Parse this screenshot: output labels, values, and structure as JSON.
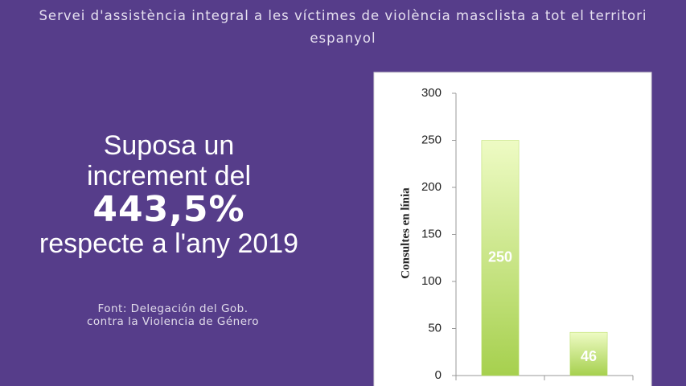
{
  "header": {
    "title": "Servei d'assistència integral a les víctimes de violència masclista a tot el territori espanyol"
  },
  "headline": {
    "line1": "Suposa un",
    "line2": "increment del",
    "figure": "443,5%",
    "line3": "respecte a l'any 2019"
  },
  "source": {
    "line1": "Font:  Delegación del Gob.",
    "line2": "contra la Violencia de Género"
  },
  "chart_data": {
    "type": "bar",
    "y_label": "Consultes en línia",
    "categories": [
      null,
      null
    ],
    "values": [
      250,
      46
    ],
    "color": "#b5dc5f",
    "ylim": [
      0,
      300
    ],
    "yticks": [
      0,
      50,
      100,
      150,
      200,
      250,
      300
    ],
    "grid": false
  }
}
